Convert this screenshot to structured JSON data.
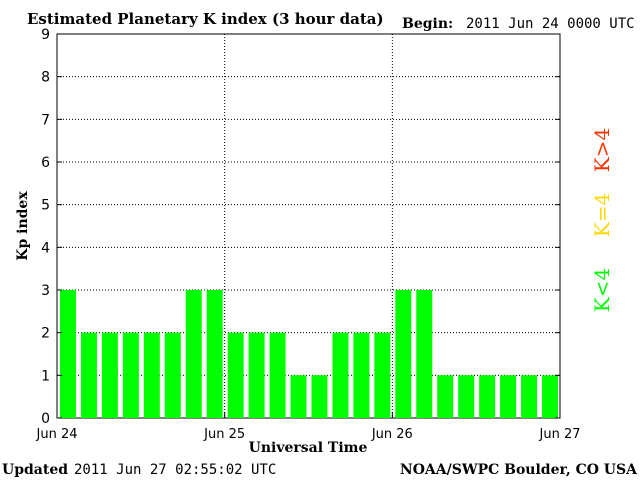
{
  "header": {
    "title": "Estimated Planetary K index (3 hour data)",
    "begin_label": "Begin:",
    "begin_value": "2011 Jun 24 0000 UTC"
  },
  "footer": {
    "updated_label": "Updated",
    "updated_value": "2011 Jun 27 02:55:02 UTC",
    "source": "NOAA/SWPC Boulder, CO USA"
  },
  "legend": {
    "storm": {
      "label": "K>4",
      "color": "#ff3000"
    },
    "active": {
      "label": "K=4",
      "color": "#ffd800"
    },
    "quiet": {
      "label": "K<4",
      "color": "#00ff00"
    }
  },
  "chart_data": {
    "type": "bar",
    "title": "Estimated Planetary K index (3 hour data)",
    "xlabel": "Universal Time",
    "ylabel": "Kp index",
    "ylim": [
      0,
      9
    ],
    "yticks": [
      0,
      1,
      2,
      3,
      4,
      5,
      6,
      7,
      8,
      9
    ],
    "x_tick_labels": [
      "Jun 24",
      "Jun 25",
      "Jun 26",
      "Jun 27"
    ],
    "grid": true,
    "legend_position": "right",
    "bar_color": "#00ff00",
    "series": [
      {
        "values": [
          3,
          2,
          2,
          2,
          2,
          2,
          3,
          3,
          2,
          2,
          2,
          1,
          1,
          2,
          2,
          2,
          3,
          3,
          1,
          1,
          1,
          1,
          1,
          1
        ]
      }
    ]
  }
}
